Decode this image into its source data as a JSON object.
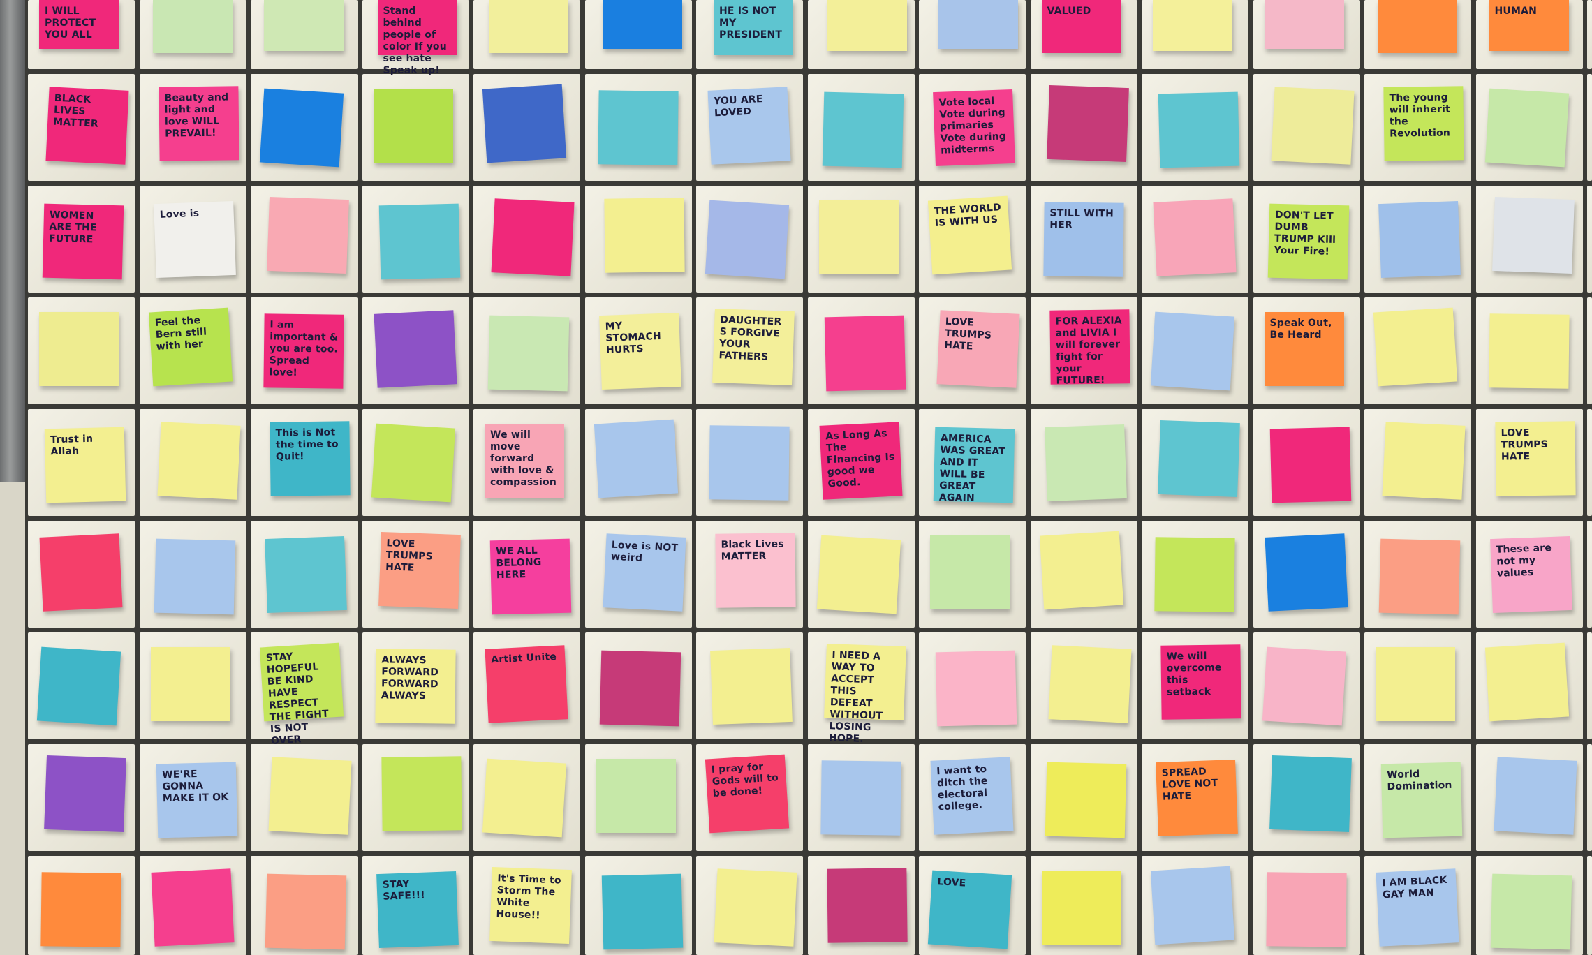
{
  "scene": "sticky notes on subway tile wall",
  "colors": {
    "grout": "#3a3a36",
    "tile": "#eeecdf"
  },
  "notes": [
    [
      {
        "c": "#f0287a",
        "t": "I WILL PROTECT YOU ALL"
      },
      {
        "c": "#c9e7b3",
        "t": ""
      },
      {
        "c": "#cfe8b4",
        "t": ""
      },
      {
        "c": "#f0287a",
        "t": "Stand behind people of color If you see hate Speak up!"
      },
      {
        "c": "#f2ef9c",
        "t": ""
      },
      {
        "c": "#1a7fe0",
        "t": ""
      },
      {
        "c": "#5ec5d0",
        "t": "HE IS NOT MY PRESIDENT"
      },
      {
        "c": "#f3ef99",
        "t": ""
      },
      {
        "c": "#a8c4ea",
        "t": ""
      },
      {
        "c": "#f0287a",
        "t": "VALUED"
      },
      {
        "c": "#f4f09a",
        "t": ""
      },
      {
        "c": "#f5b8c8",
        "t": ""
      },
      {
        "c": "#ff8a3c",
        "t": ""
      },
      {
        "c": "#ff8a3c",
        "t": "HUMAN"
      }
    ],
    [
      {
        "c": "#f0287a",
        "t": "BLACK LIVES MATTER"
      },
      {
        "c": "#f53f8e",
        "t": "Beauty and light and love WILL PREVAIL!"
      },
      {
        "c": "#1a80e0",
        "t": ""
      },
      {
        "c": "#b3e04a",
        "t": ""
      },
      {
        "c": "#3f68c8",
        "t": ""
      },
      {
        "c": "#5ec5d0",
        "t": ""
      },
      {
        "c": "#a9c7ec",
        "t": "YOU ARE LOVED"
      },
      {
        "c": "#5ec5d0",
        "t": ""
      },
      {
        "c": "#f53f8e",
        "t": "Vote local Vote during primaries Vote during midterms"
      },
      {
        "c": "#c63a78",
        "t": ""
      },
      {
        "c": "#5ec5d0",
        "t": ""
      },
      {
        "c": "#eeec9a",
        "t": ""
      },
      {
        "c": "#c4e65a",
        "t": "The young will inherit the Revolution"
      },
      {
        "c": "#c6e8a8",
        "t": ""
      }
    ],
    [
      {
        "c": "#f0287a",
        "t": "WOMEN ARE THE FUTURE"
      },
      {
        "c": "#f1f0ec",
        "t": "Love is"
      },
      {
        "c": "#f9a9b3",
        "t": ""
      },
      {
        "c": "#5ec5d0",
        "t": ""
      },
      {
        "c": "#f0287a",
        "t": ""
      },
      {
        "c": "#f3ef90",
        "t": ""
      },
      {
        "c": "#a5b8e8",
        "t": ""
      },
      {
        "c": "#f3ee98",
        "t": ""
      },
      {
        "c": "#f4ef8e",
        "t": "THE WORLD IS WITH US"
      },
      {
        "c": "#9fc0ea",
        "t": "STILL WITH HER"
      },
      {
        "c": "#f8a5b8",
        "t": ""
      },
      {
        "c": "#c4e65a",
        "t": "DON'T LET DUMB TRUMP Kill Your Fire!"
      },
      {
        "c": "#9fc0ea",
        "t": ""
      },
      {
        "c": "#dfe3e8",
        "t": ""
      }
    ],
    [
      {
        "c": "#eeec90",
        "t": ""
      },
      {
        "c": "#b7e34e",
        "t": "Feel the Bern still with her"
      },
      {
        "c": "#f0287a",
        "t": "I am important & you are too. Spread love!"
      },
      {
        "c": "#8d52c6",
        "t": ""
      },
      {
        "c": "#c9e8b3",
        "t": ""
      },
      {
        "c": "#f3ef9a",
        "t": "MY STOMACH HURTS"
      },
      {
        "c": "#f3ef9a",
        "t": "DAUGHTERS FORGIVE YOUR FATHERS"
      },
      {
        "c": "#f53f8e",
        "t": ""
      },
      {
        "c": "#f8a7b6",
        "t": "LOVE TRUMPS HATE"
      },
      {
        "c": "#f0287a",
        "t": "FOR ALEXIA and LIVIA I will forever fight for your FUTURE!"
      },
      {
        "c": "#a8c6ec",
        "t": ""
      },
      {
        "c": "#ff8a3c",
        "t": "Speak Out, Be Heard"
      },
      {
        "c": "#f3ef90",
        "t": ""
      },
      {
        "c": "#f3ef90",
        "t": ""
      }
    ],
    [
      {
        "c": "#f3ef90",
        "t": "Trust in Allah"
      },
      {
        "c": "#f3ef90",
        "t": ""
      },
      {
        "c": "#3fb6c8",
        "t": "This is Not the time to Quit!"
      },
      {
        "c": "#c4e65a",
        "t": ""
      },
      {
        "c": "#f8a5b5",
        "t": "We will move forward with love & compassion"
      },
      {
        "c": "#a8c6ec",
        "t": ""
      },
      {
        "c": "#a8c6ec",
        "t": ""
      },
      {
        "c": "#f0287a",
        "t": "As Long As The Financing Is good we Good."
      },
      {
        "c": "#5ec5d0",
        "t": "AMERICA WAS GREAT AND IT WILL BE GREAT AGAIN"
      },
      {
        "c": "#c9e8b3",
        "t": ""
      },
      {
        "c": "#5ec5d0",
        "t": ""
      },
      {
        "c": "#f0287a",
        "t": ""
      },
      {
        "c": "#f3ef90",
        "t": ""
      },
      {
        "c": "#f3ef90",
        "t": "LOVE TRUMPS HATE"
      }
    ],
    [
      {
        "c": "#f53f6a",
        "t": ""
      },
      {
        "c": "#a8c6ec",
        "t": ""
      },
      {
        "c": "#5ec5d0",
        "t": ""
      },
      {
        "c": "#fb9e84",
        "t": "LOVE TRUMPS HATE"
      },
      {
        "c": "#f53f9e",
        "t": "WE ALL BELONG HERE"
      },
      {
        "c": "#a8c6ec",
        "t": "Love is NOT weird"
      },
      {
        "c": "#fbc0cf",
        "t": "Black Lives MATTER"
      },
      {
        "c": "#f3ef90",
        "t": ""
      },
      {
        "c": "#c6e8a8",
        "t": ""
      },
      {
        "c": "#f3ef90",
        "t": ""
      },
      {
        "c": "#c4e65a",
        "t": ""
      },
      {
        "c": "#1a80e0",
        "t": ""
      },
      {
        "c": "#fb9e84",
        "t": ""
      },
      {
        "c": "#f8a5c8",
        "t": "These are not my values"
      }
    ],
    [
      {
        "c": "#3fb6c8",
        "t": ""
      },
      {
        "c": "#f3ef90",
        "t": ""
      },
      {
        "c": "#c4e65a",
        "t": "STAY HOPEFUL BE KIND HAVE RESPECT THE FIGHT IS NOT OVER"
      },
      {
        "c": "#f3ef90",
        "t": "ALWAYS FORWARD FORWARD ALWAYS"
      },
      {
        "c": "#f53f6a",
        "t": "Artist Unite"
      },
      {
        "c": "#c63a78",
        "t": ""
      },
      {
        "c": "#f3ef90",
        "t": ""
      },
      {
        "c": "#f3ef90",
        "t": "I NEED A WAY TO ACCEPT THIS DEFEAT WITHOUT LOSING HOPE."
      },
      {
        "c": "#fbb4c8",
        "t": ""
      },
      {
        "c": "#f3ef90",
        "t": ""
      },
      {
        "c": "#f0287a",
        "t": "We will overcome this setback"
      },
      {
        "c": "#f8b4c8",
        "t": ""
      },
      {
        "c": "#f3ef90",
        "t": ""
      },
      {
        "c": "#f3ef90",
        "t": ""
      }
    ],
    [
      {
        "c": "#8d52c6",
        "t": ""
      },
      {
        "c": "#a8c6ec",
        "t": "WE'RE GONNA MAKE IT OK"
      },
      {
        "c": "#f3ef90",
        "t": ""
      },
      {
        "c": "#c4e65a",
        "t": ""
      },
      {
        "c": "#f3ef90",
        "t": ""
      },
      {
        "c": "#c6e8a8",
        "t": ""
      },
      {
        "c": "#f53f6a",
        "t": "I pray for Gods will to be done!"
      },
      {
        "c": "#a8c6ec",
        "t": ""
      },
      {
        "c": "#a8c6ec",
        "t": "I want to ditch the electoral college."
      },
      {
        "c": "#eeec5a",
        "t": ""
      },
      {
        "c": "#ff8a3c",
        "t": "SPREAD LOVE NOT HATE"
      },
      {
        "c": "#3fb6c8",
        "t": ""
      },
      {
        "c": "#c6e8a8",
        "t": "World Domination"
      },
      {
        "c": "#a8c6ec",
        "t": ""
      }
    ],
    [
      {
        "c": "#ff8a3c",
        "t": ""
      },
      {
        "c": "#f53f8e",
        "t": ""
      },
      {
        "c": "#fb9e84",
        "t": ""
      },
      {
        "c": "#3fb6c8",
        "t": "STAY SAFE!!!"
      },
      {
        "c": "#f3ef90",
        "t": "It's Time to Storm The White House!!"
      },
      {
        "c": "#3fb6c8",
        "t": ""
      },
      {
        "c": "#f3ef90",
        "t": ""
      },
      {
        "c": "#c63a78",
        "t": ""
      },
      {
        "c": "#3fb6c8",
        "t": "LOVE"
      },
      {
        "c": "#eeec5a",
        "t": ""
      },
      {
        "c": "#a8c6ec",
        "t": ""
      },
      {
        "c": "#f8a5b5",
        "t": ""
      },
      {
        "c": "#a8c6ec",
        "t": "I AM BLACK GAY MAN"
      },
      {
        "c": "#c6e8a8",
        "t": ""
      }
    ]
  ]
}
